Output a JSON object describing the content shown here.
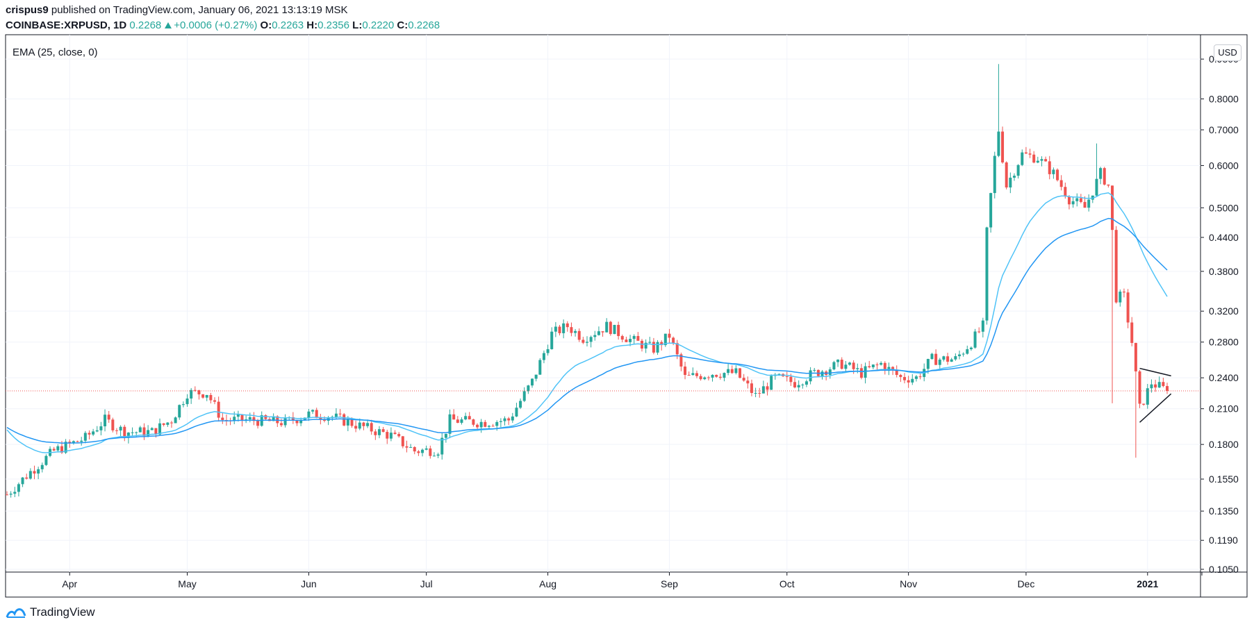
{
  "header": {
    "author": "crispus9",
    "published_text": " published on TradingView.com, January 06, 2021 13:13:19 MSK",
    "symbol": "COINBASE:XRPUSD",
    "interval": "1D",
    "last": "0.2268",
    "change": "+0.0006 (+0.27%)",
    "o_label": "O:",
    "o": "0.2263",
    "h_label": "H:",
    "h": "0.2356",
    "l_label": "L:",
    "l": "0.2220",
    "c_label": "C:",
    "c": "0.2268"
  },
  "indicator_label": "EMA (25, close, 0)",
  "currency_button": "USD",
  "brand": "TradingView",
  "colors": {
    "up": "#26a69a",
    "down": "#ef5350",
    "ema_fast": "#4fc3f7",
    "ema_slow": "#2196f3",
    "price_line": "#ef5350",
    "grid": "#f0f3fa"
  },
  "chart_data": {
    "type": "candlestick",
    "scale": "log",
    "y_ticks": [
      "0.9500",
      "0.8000",
      "0.7000",
      "0.6000",
      "0.5000",
      "0.4400",
      "0.3800",
      "0.3200",
      "0.2800",
      "0.2400",
      "0.2100",
      "0.1800",
      "0.1550",
      "0.1350",
      "0.1190",
      "0.1050"
    ],
    "ylim": [
      0.105,
      1.0
    ],
    "x_ticks": [
      "Apr",
      "May",
      "Jun",
      "Jul",
      "Aug",
      "Sep",
      "Oct",
      "Nov",
      "Dec",
      "2021"
    ],
    "x_tick_dates": [
      "2020-04-01",
      "2020-05-01",
      "2020-06-01",
      "2020-07-01",
      "2020-08-01",
      "2020-09-01",
      "2020-10-01",
      "2020-11-01",
      "2020-12-01",
      "2021-01-01"
    ],
    "date_range": [
      "2020-03-16",
      "2021-01-06"
    ],
    "current_price": 0.2268,
    "anchors": [
      [
        "2020-03-16",
        0.145
      ],
      [
        "2020-03-22",
        0.16
      ],
      [
        "2020-03-28",
        0.175
      ],
      [
        "2020-04-05",
        0.185
      ],
      [
        "2020-04-10",
        0.2
      ],
      [
        "2020-04-15",
        0.19
      ],
      [
        "2020-04-22",
        0.19
      ],
      [
        "2020-04-27",
        0.2
      ],
      [
        "2020-05-01",
        0.225
      ],
      [
        "2020-05-06",
        0.225
      ],
      [
        "2020-05-10",
        0.2
      ],
      [
        "2020-05-17",
        0.2
      ],
      [
        "2020-05-26",
        0.198
      ],
      [
        "2020-06-01",
        0.205
      ],
      [
        "2020-06-06",
        0.204
      ],
      [
        "2020-06-14",
        0.195
      ],
      [
        "2020-06-22",
        0.187
      ],
      [
        "2020-06-28",
        0.175
      ],
      [
        "2020-07-04",
        0.176
      ],
      [
        "2020-07-07",
        0.2
      ],
      [
        "2020-07-15",
        0.198
      ],
      [
        "2020-07-22",
        0.2
      ],
      [
        "2020-07-28",
        0.236
      ],
      [
        "2020-08-02",
        0.29
      ],
      [
        "2020-08-06",
        0.3
      ],
      [
        "2020-08-10",
        0.285
      ],
      [
        "2020-08-16",
        0.3
      ],
      [
        "2020-08-22",
        0.283
      ],
      [
        "2020-08-28",
        0.272
      ],
      [
        "2020-09-01",
        0.288
      ],
      [
        "2020-09-05",
        0.24
      ],
      [
        "2020-09-12",
        0.245
      ],
      [
        "2020-09-18",
        0.245
      ],
      [
        "2020-09-23",
        0.222
      ],
      [
        "2020-09-28",
        0.24
      ],
      [
        "2020-10-03",
        0.235
      ],
      [
        "2020-10-08",
        0.245
      ],
      [
        "2020-10-15",
        0.255
      ],
      [
        "2020-10-20",
        0.245
      ],
      [
        "2020-10-25",
        0.255
      ],
      [
        "2020-10-30",
        0.24
      ],
      [
        "2020-11-03",
        0.24
      ],
      [
        "2020-11-07",
        0.26
      ],
      [
        "2020-11-13",
        0.26
      ],
      [
        "2020-11-17",
        0.28
      ],
      [
        "2020-11-20",
        0.3
      ],
      [
        "2020-11-21",
        0.45
      ],
      [
        "2020-11-23",
        0.62
      ],
      [
        "2020-11-24",
        0.7
      ],
      [
        "2020-11-26",
        0.55
      ],
      [
        "2020-11-30",
        0.63
      ],
      [
        "2020-12-04",
        0.62
      ],
      [
        "2020-12-08",
        0.58
      ],
      [
        "2020-12-12",
        0.52
      ],
      [
        "2020-12-16",
        0.5
      ],
      [
        "2020-12-20",
        0.58
      ],
      [
        "2020-12-22",
        0.55
      ],
      [
        "2020-12-23",
        0.45
      ],
      [
        "2020-12-24",
        0.34
      ],
      [
        "2020-12-26",
        0.34
      ],
      [
        "2020-12-28",
        0.28
      ],
      [
        "2020-12-30",
        0.21
      ],
      [
        "2021-01-02",
        0.235
      ],
      [
        "2021-01-06",
        0.2268
      ]
    ],
    "series": [
      {
        "name": "EMA 25",
        "type": "line"
      },
      {
        "name": "EMA 50",
        "type": "line"
      }
    ],
    "annotations": [
      "triangle pattern trendlines (late Dec 2020 – early Jan 2021)"
    ]
  }
}
